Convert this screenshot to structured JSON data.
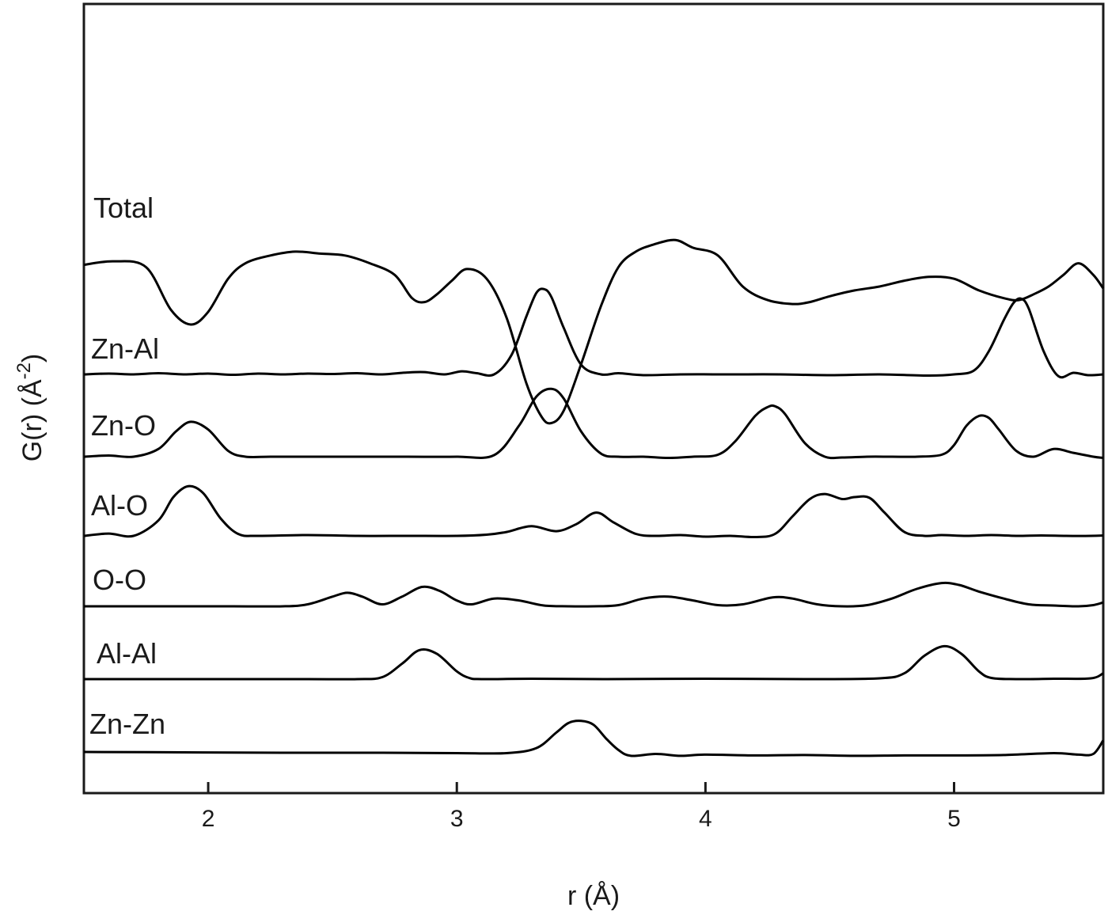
{
  "chart_data": {
    "type": "line",
    "xlabel": "r (Å)",
    "ylabel_main": "G(r) (Å",
    "ylabel_sup": "-2",
    "ylabel_close": ")",
    "xlim": [
      1.5,
      5.6
    ],
    "x_ticks": [
      2,
      3,
      4,
      5
    ],
    "x_tick_labels": [
      "2",
      "3",
      "4",
      "5"
    ],
    "grid": false,
    "legend": "none (series labeled inline at left)",
    "line_color": "#000000",
    "series": [
      {
        "name": "Total",
        "baseline": 0,
        "x": [
          1.5,
          1.62,
          1.75,
          1.85,
          1.93,
          2.0,
          2.08,
          2.15,
          2.25,
          2.35,
          2.45,
          2.55,
          2.65,
          2.75,
          2.82,
          2.87,
          2.92,
          2.98,
          3.04,
          3.12,
          3.2,
          3.28,
          3.34,
          3.38,
          3.43,
          3.5,
          3.58,
          3.65,
          3.72,
          3.8,
          3.88,
          3.95,
          4.05,
          4.15,
          4.25,
          4.35,
          4.42,
          4.5,
          4.6,
          4.7,
          4.8,
          4.9,
          5.0,
          5.1,
          5.2,
          5.26,
          5.32,
          5.38,
          5.44,
          5.5,
          5.56,
          5.6
        ],
        "values": [
          5.6,
          6.5,
          5.0,
          -6.0,
          -9.8,
          -6.5,
          2.0,
          6.0,
          8.0,
          9.0,
          8.5,
          8.0,
          6.0,
          3.0,
          -3.0,
          -4.0,
          -2.0,
          1.5,
          4.5,
          2.0,
          -8.0,
          -25.0,
          -33.5,
          -35.2,
          -32.0,
          -20.0,
          -5.0,
          5.0,
          9.0,
          11.0,
          12.0,
          10.0,
          8.0,
          0.0,
          -3.5,
          -4.5,
          -4.0,
          -2.5,
          -1.0,
          0.0,
          1.5,
          2.5,
          2.0,
          -1.0,
          -3.0,
          -3.5,
          -2.0,
          0.0,
          3.0,
          6.0,
          3.0,
          -0.5
        ]
      },
      {
        "name": "Zn-Al",
        "baseline": 0,
        "x": [
          1.5,
          1.6,
          1.7,
          1.8,
          1.9,
          2.0,
          2.1,
          2.2,
          2.3,
          2.4,
          2.5,
          2.6,
          2.7,
          2.8,
          2.87,
          2.95,
          3.02,
          3.08,
          3.15,
          3.22,
          3.28,
          3.32,
          3.35,
          3.38,
          3.43,
          3.5,
          3.58,
          3.65,
          3.75,
          3.9,
          4.1,
          4.3,
          4.5,
          4.7,
          4.9,
          5.0,
          5.08,
          5.14,
          5.2,
          5.24,
          5.27,
          5.3,
          5.36,
          5.42,
          5.48,
          5.54,
          5.6
        ],
        "values": [
          0.0,
          0.2,
          0.0,
          0.3,
          0.0,
          0.2,
          -0.1,
          0.2,
          0.0,
          0.2,
          0.1,
          0.3,
          0.0,
          0.5,
          0.6,
          0.0,
          0.8,
          0.3,
          0.0,
          5.0,
          15.0,
          21.0,
          22.0,
          20.0,
          12.0,
          2.5,
          0.0,
          0.3,
          -0.2,
          0.0,
          0.0,
          0.0,
          -0.2,
          0.0,
          -0.3,
          0.0,
          1.0,
          6.0,
          14.0,
          18.5,
          19.5,
          17.0,
          6.0,
          -0.5,
          0.4,
          -0.2,
          0.0
        ]
      },
      {
        "name": "Zn-O",
        "baseline": 0,
        "x": [
          1.5,
          1.6,
          1.7,
          1.8,
          1.87,
          1.93,
          2.0,
          2.08,
          2.15,
          2.25,
          2.4,
          2.6,
          2.8,
          3.0,
          3.15,
          3.25,
          3.32,
          3.38,
          3.43,
          3.5,
          3.58,
          3.65,
          3.75,
          3.85,
          3.95,
          4.05,
          4.12,
          4.2,
          4.25,
          4.28,
          4.32,
          4.4,
          4.48,
          4.55,
          4.65,
          4.75,
          4.85,
          4.95,
          5.0,
          5.05,
          5.1,
          5.14,
          5.18,
          5.25,
          5.32,
          5.4,
          5.48,
          5.56,
          5.6
        ],
        "values": [
          0.0,
          0.3,
          0.0,
          2.0,
          6.5,
          9.0,
          7.0,
          1.5,
          0.0,
          0.0,
          0.0,
          0.0,
          0.0,
          0.0,
          0.4,
          8.0,
          15.5,
          17.5,
          15.0,
          6.5,
          0.8,
          0.0,
          0.0,
          -0.3,
          0.0,
          0.5,
          4.0,
          10.5,
          12.8,
          13.0,
          11.0,
          3.5,
          0.0,
          -0.2,
          0.0,
          0.0,
          0.0,
          0.5,
          3.0,
          8.0,
          10.5,
          10.0,
          7.0,
          1.5,
          0.0,
          2.0,
          1.0,
          0.0,
          -0.3
        ]
      },
      {
        "name": "Al-O",
        "baseline": 0,
        "x": [
          1.5,
          1.6,
          1.7,
          1.8,
          1.86,
          1.92,
          1.98,
          2.05,
          2.12,
          2.2,
          2.4,
          2.6,
          2.8,
          3.0,
          3.12,
          3.2,
          3.3,
          3.4,
          3.48,
          3.56,
          3.63,
          3.72,
          3.8,
          3.9,
          4.0,
          4.1,
          4.2,
          4.28,
          4.35,
          4.42,
          4.48,
          4.55,
          4.6,
          4.66,
          4.72,
          4.8,
          4.88,
          4.95,
          5.05,
          5.15,
          5.25,
          5.35,
          5.45,
          5.55,
          5.6
        ],
        "values": [
          0.0,
          0.6,
          0.0,
          4.0,
          10.0,
          12.8,
          11.0,
          4.5,
          0.5,
          0.0,
          0.2,
          0.0,
          0.0,
          0.0,
          0.3,
          1.0,
          2.5,
          1.2,
          3.0,
          6.0,
          3.5,
          0.5,
          0.0,
          0.2,
          -0.2,
          0.0,
          -0.3,
          0.5,
          5.0,
          9.5,
          10.8,
          9.5,
          10.0,
          9.8,
          6.0,
          1.0,
          0.0,
          0.2,
          0.0,
          0.2,
          0.0,
          0.1,
          0.0,
          0.0,
          0.1
        ]
      },
      {
        "name": "O-O",
        "baseline": 0,
        "x": [
          1.5,
          1.7,
          1.9,
          2.1,
          2.3,
          2.4,
          2.5,
          2.56,
          2.62,
          2.7,
          2.78,
          2.86,
          2.93,
          3.0,
          3.06,
          3.15,
          3.25,
          3.35,
          3.45,
          3.55,
          3.65,
          3.75,
          3.85,
          3.95,
          4.05,
          4.15,
          4.27,
          4.35,
          4.45,
          4.55,
          4.65,
          4.75,
          4.85,
          4.95,
          5.02,
          5.1,
          5.2,
          5.3,
          5.4,
          5.5,
          5.56,
          5.6
        ],
        "values": [
          0.0,
          0.0,
          0.0,
          0.0,
          0.0,
          0.5,
          2.5,
          3.5,
          2.5,
          0.5,
          2.5,
          5.0,
          4.0,
          1.5,
          0.5,
          2.0,
          1.5,
          0.2,
          0.0,
          0.0,
          0.3,
          2.0,
          2.5,
          1.5,
          0.3,
          0.5,
          2.3,
          2.0,
          0.5,
          0.0,
          0.3,
          2.0,
          4.5,
          6.0,
          5.5,
          3.8,
          2.0,
          0.5,
          0.2,
          0.0,
          0.3,
          1.0
        ]
      },
      {
        "name": "Al-Al",
        "baseline": 0,
        "x": [
          1.5,
          1.8,
          2.1,
          2.4,
          2.6,
          2.7,
          2.78,
          2.85,
          2.92,
          3.0,
          3.05,
          3.1,
          3.3,
          3.6,
          4.0,
          4.4,
          4.7,
          4.8,
          4.88,
          4.96,
          5.03,
          5.1,
          5.15,
          5.25,
          5.4,
          5.55,
          5.6
        ],
        "values": [
          0.0,
          0.0,
          0.0,
          0.0,
          0.0,
          0.5,
          4.0,
          7.5,
          6.5,
          2.0,
          0.3,
          0.0,
          0.1,
          0.0,
          0.1,
          0.0,
          0.2,
          1.5,
          6.0,
          8.5,
          6.5,
          2.0,
          0.3,
          0.0,
          0.1,
          0.2,
          1.5
        ]
      },
      {
        "name": "Zn-Zn",
        "baseline": 0,
        "x": [
          1.5,
          1.9,
          2.3,
          2.7,
          3.0,
          3.2,
          3.32,
          3.4,
          3.45,
          3.5,
          3.55,
          3.6,
          3.65,
          3.7,
          3.8,
          3.9,
          4.0,
          4.2,
          4.4,
          4.6,
          4.8,
          5.0,
          5.2,
          5.4,
          5.5,
          5.56,
          5.6
        ],
        "values": [
          0.0,
          -0.1,
          -0.2,
          -0.2,
          -0.3,
          -0.3,
          1.0,
          5.0,
          7.5,
          8.0,
          7.0,
          3.5,
          0.5,
          -1.0,
          -0.5,
          -1.0,
          -0.7,
          -0.9,
          -0.8,
          -1.0,
          -0.9,
          -0.9,
          -0.8,
          -0.3,
          -0.7,
          -0.5,
          3.0
        ]
      }
    ]
  }
}
